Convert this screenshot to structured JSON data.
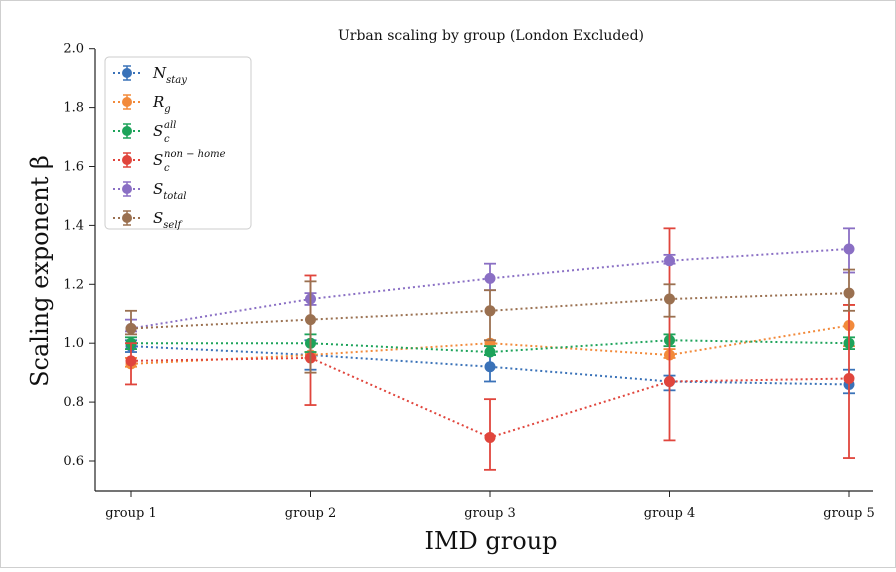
{
  "chart_data": {
    "type": "line",
    "title": "Urban scaling by group (London Excluded)",
    "xlabel": "IMD group",
    "ylabel": "Scaling exponent β",
    "categories": [
      "group 1",
      "group 2",
      "group 3",
      "group 4",
      "group 5"
    ],
    "ylim": [
      0.5,
      2.0
    ],
    "yticks": [
      "0.6",
      "0.8",
      "1.0",
      "1.2",
      "1.4",
      "1.6",
      "1.8",
      "2.0"
    ],
    "grid": false,
    "legend_position": "top-left",
    "line_style": "dotted",
    "error_bars": true,
    "series": [
      {
        "name_base": "N",
        "name_sub": "stay",
        "name_sup": "",
        "color": "#3a72b8",
        "values": [
          0.99,
          0.96,
          0.92,
          0.87,
          0.86
        ],
        "err_low": [
          0.97,
          0.91,
          0.87,
          0.84,
          0.83
        ],
        "err_high": [
          1.01,
          1.01,
          0.96,
          0.89,
          0.91
        ]
      },
      {
        "name_base": "R",
        "name_sub": "g",
        "name_sup": "",
        "color": "#f28a3b",
        "values": [
          0.93,
          0.96,
          1.0,
          0.96,
          1.06
        ],
        "err_low": [
          0.92,
          0.95,
          0.99,
          0.95,
          0.99
        ],
        "err_high": [
          0.95,
          0.97,
          1.01,
          0.98,
          1.13
        ]
      },
      {
        "name_base": "S",
        "name_sub": "c",
        "name_sup": "all",
        "color": "#1da35a",
        "values": [
          1.0,
          1.0,
          0.97,
          1.01,
          1.0
        ],
        "err_low": [
          0.98,
          0.97,
          0.96,
          0.99,
          0.98
        ],
        "err_high": [
          1.02,
          1.03,
          0.99,
          1.03,
          1.02
        ]
      },
      {
        "name_base": "S",
        "name_sub": "c",
        "name_sup": "non − home",
        "color": "#e0453c",
        "values": [
          0.94,
          0.95,
          0.68,
          0.87,
          0.88
        ],
        "err_low": [
          0.86,
          0.79,
          0.57,
          0.67,
          0.61
        ],
        "err_high": [
          1.0,
          1.23,
          0.81,
          1.39,
          1.13
        ]
      },
      {
        "name_base": "S",
        "name_sub": "total",
        "name_sup": "",
        "color": "#8a6fc4",
        "values": [
          1.05,
          1.15,
          1.22,
          1.28,
          1.32
        ],
        "err_low": [
          1.04,
          1.13,
          1.18,
          1.27,
          1.24
        ],
        "err_high": [
          1.08,
          1.17,
          1.27,
          1.3,
          1.39
        ]
      },
      {
        "name_base": "S",
        "name_sub": "self",
        "name_sup": "",
        "color": "#9a7050",
        "values": [
          1.05,
          1.08,
          1.11,
          1.15,
          1.17
        ],
        "err_low": [
          1.03,
          0.9,
          1.01,
          1.09,
          1.11
        ],
        "err_high": [
          1.11,
          1.21,
          1.18,
          1.2,
          1.25
        ]
      }
    ]
  }
}
